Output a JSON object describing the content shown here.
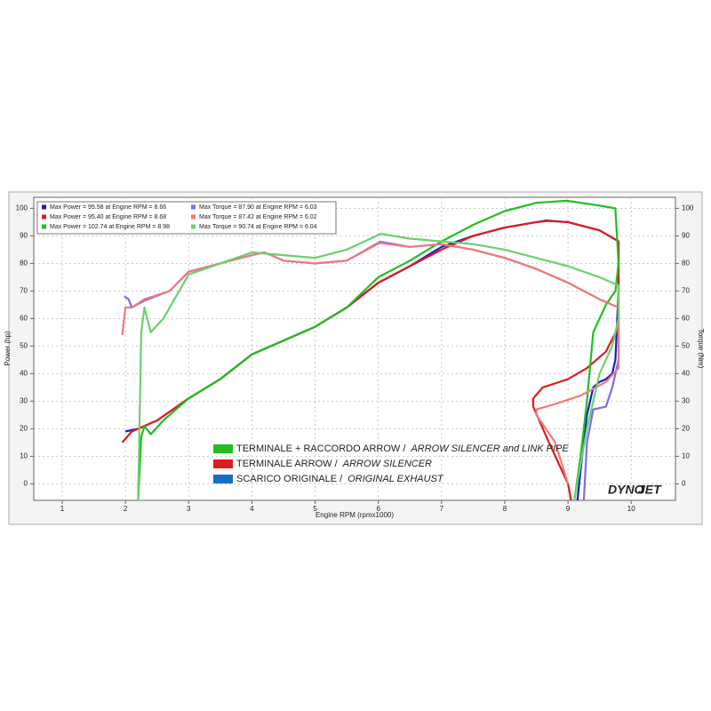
{
  "chart_data": {
    "type": "line",
    "x_label": "Engine RPM (rpmx1000)",
    "y_label": "Power (hp)",
    "y2_label": "Torque (Nm)",
    "xlim": [
      0.55,
      10.7
    ],
    "ylim": [
      -6,
      104
    ],
    "y2lim": [
      -6,
      104
    ],
    "xticks": [
      1,
      2,
      3,
      4,
      5,
      6,
      7,
      8,
      9,
      10
    ],
    "yticks": [
      0,
      10,
      20,
      30,
      40,
      50,
      60,
      70,
      80,
      90,
      100
    ],
    "y2ticks": [
      0,
      10,
      20,
      30,
      40,
      50,
      60,
      70,
      80,
      90,
      100
    ],
    "grid": true,
    "series": [
      {
        "name": "Max Power = 95.58 at Engine RPM = 8.66",
        "color": "#1a1acc",
        "x": [
          2.0,
          2.2,
          2.5,
          3.0,
          3.5,
          4.0,
          4.5,
          5.0,
          5.5,
          6.0,
          6.5,
          7.0,
          7.5,
          8.0,
          8.5,
          8.66,
          9.0,
          9.5,
          9.8,
          9.8,
          9.75,
          9.7,
          9.6,
          9.5,
          9.4,
          9.3,
          9.2,
          9.15
        ],
        "values": [
          19,
          20,
          23,
          31,
          38,
          47,
          52,
          57,
          64,
          73,
          79,
          86,
          90,
          93,
          95,
          95.58,
          95,
          92,
          88,
          70,
          45,
          40,
          38,
          37,
          35,
          25,
          5,
          -6
        ]
      },
      {
        "name": "Max Power = 95.40 at Engine RPM = 8.68",
        "color": "#dd1c1c",
        "x": [
          1.95,
          2.1,
          2.5,
          3.0,
          3.5,
          4.0,
          4.5,
          5.0,
          5.5,
          6.0,
          6.5,
          7.0,
          7.5,
          8.0,
          8.5,
          8.68,
          9.0,
          9.5,
          9.8,
          9.8,
          9.6,
          9.3,
          9.0,
          8.6,
          8.45,
          8.45,
          8.7,
          9.0,
          9.05
        ],
        "values": [
          15,
          19,
          23,
          31,
          38,
          47,
          52,
          57,
          64,
          73,
          79,
          85,
          90,
          93,
          95,
          95.4,
          95,
          92,
          88,
          57,
          48,
          42,
          38,
          35,
          31,
          28,
          15,
          0,
          -6
        ]
      },
      {
        "name": "Max Power = 102.74 at Engine RPM = 8.98",
        "color": "#1fbf1f",
        "x": [
          2.2,
          2.25,
          2.3,
          2.4,
          2.6,
          3.0,
          3.5,
          4.0,
          4.5,
          5.0,
          5.5,
          6.0,
          6.5,
          7.0,
          7.5,
          8.0,
          8.5,
          8.98,
          9.5,
          9.75,
          9.8,
          9.75,
          9.6,
          9.4,
          9.3,
          9.2,
          9.1
        ],
        "values": [
          -6,
          17,
          21,
          18,
          23,
          31,
          38,
          47,
          52,
          57,
          64,
          75,
          81,
          88,
          94,
          99,
          102,
          102.74,
          101,
          100,
          80,
          70,
          65,
          55,
          30,
          10,
          -6
        ]
      },
      {
        "name": "Max Torque = 87.90 at Engine RPM = 6.03",
        "color": "#7a6ee8",
        "axis": "y2",
        "x": [
          1.98,
          2.05,
          2.1,
          2.3,
          2.7,
          3.0,
          3.5,
          4.0,
          4.2,
          4.5,
          5.0,
          5.5,
          6.03,
          6.5,
          7.0,
          7.5,
          8.0,
          8.5,
          9.0,
          9.5,
          9.8,
          9.8,
          9.7,
          9.6,
          9.4,
          9.3,
          9.25
        ],
        "values": [
          68,
          67,
          64,
          66.5,
          70,
          77,
          80,
          83,
          84,
          81,
          80,
          81,
          87.9,
          86,
          87,
          85,
          82,
          78,
          73,
          67,
          64,
          45,
          35,
          28,
          27,
          15,
          -6
        ]
      },
      {
        "name": "Max Torque = 87.42 at Engine RPM = 6.02",
        "color": "#f07a7a",
        "axis": "y2",
        "x": [
          1.95,
          2.0,
          2.1,
          2.3,
          2.7,
          3.0,
          3.5,
          4.0,
          4.2,
          4.5,
          5.0,
          5.5,
          6.02,
          6.5,
          7.0,
          7.5,
          8.0,
          8.5,
          9.0,
          9.5,
          9.8,
          9.8,
          9.6,
          9.2,
          8.8,
          8.5,
          8.5,
          8.8,
          9.0
        ],
        "values": [
          54,
          64,
          64,
          67,
          70,
          77,
          80,
          83,
          84,
          81,
          80,
          81,
          87.42,
          86,
          87,
          85,
          82,
          78,
          73,
          67,
          64,
          42,
          37,
          32,
          29,
          27,
          25,
          15,
          0
        ]
      },
      {
        "name": "Max Torque = 90.74 at Engine RPM = 6.04",
        "color": "#6ccf6c",
        "axis": "y2",
        "x": [
          2.2,
          2.25,
          2.3,
          2.4,
          2.6,
          3.0,
          3.5,
          4.0,
          4.5,
          5.0,
          5.5,
          6.04,
          6.5,
          7.0,
          7.5,
          8.0,
          8.5,
          9.0,
          9.5,
          9.8,
          9.8,
          9.7,
          9.5,
          9.3,
          9.1
        ],
        "values": [
          -6,
          55,
          64,
          55,
          60,
          76,
          80,
          84,
          83,
          82,
          85,
          90.74,
          89,
          88,
          87,
          85,
          82,
          79,
          75,
          72,
          60,
          50,
          40,
          20,
          -6
        ]
      }
    ],
    "legend2": [
      {
        "text": "TERMINALE + RACCORDO ARROW / ",
        "italic": "ARROW SILENCER and LINK PIPE",
        "color": "#1fbf1f"
      },
      {
        "text": "TERMINALE ARROW / ",
        "italic": "ARROW SILENCER",
        "color": "#dd1c1c"
      },
      {
        "text": "SCARICO ORIGINALE / ",
        "italic": "ORIGINAL EXHAUST",
        "color": "#1a6cc4"
      }
    ],
    "logo": [
      "DYNO",
      "JET"
    ]
  }
}
